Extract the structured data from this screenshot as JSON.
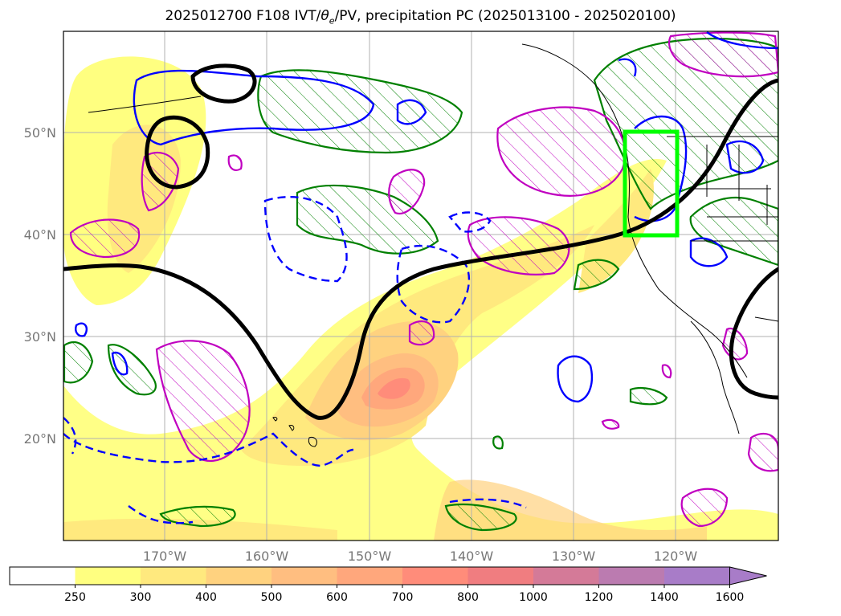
{
  "title": "2025012700 F108 IVT/θe/PV, precipitation PC (2025013100 - 2025020100)",
  "map": {
    "lon_labels": [
      "170°W",
      "160°W",
      "150°W",
      "140°W",
      "130°W",
      "120°W"
    ],
    "lat_labels": [
      "50°N",
      "40°N",
      "30°N",
      "20°N"
    ],
    "box_color": "#00ff00",
    "colors": {
      "ivt_light": "#ffff80",
      "ivt_mid": "#ffd27f",
      "ivt_strong": "#ff8c7a",
      "theta_e_contour": "#000000",
      "pv_pos": "#0000ff",
      "precip_pos": "#008000",
      "precip_neg": "#c000c0"
    }
  },
  "colorbar": {
    "levels": [
      "250",
      "300",
      "400",
      "500",
      "600",
      "700",
      "800",
      "1000",
      "1200",
      "1400",
      "1600"
    ],
    "colors": [
      "#ffffff",
      "#ffff80",
      "#ffe97e",
      "#ffd27f",
      "#ffbe80",
      "#ffa77c",
      "#ff8c7a",
      "#f07d80",
      "#d47a98",
      "#bb7bb0",
      "#a87cc8"
    ]
  }
}
